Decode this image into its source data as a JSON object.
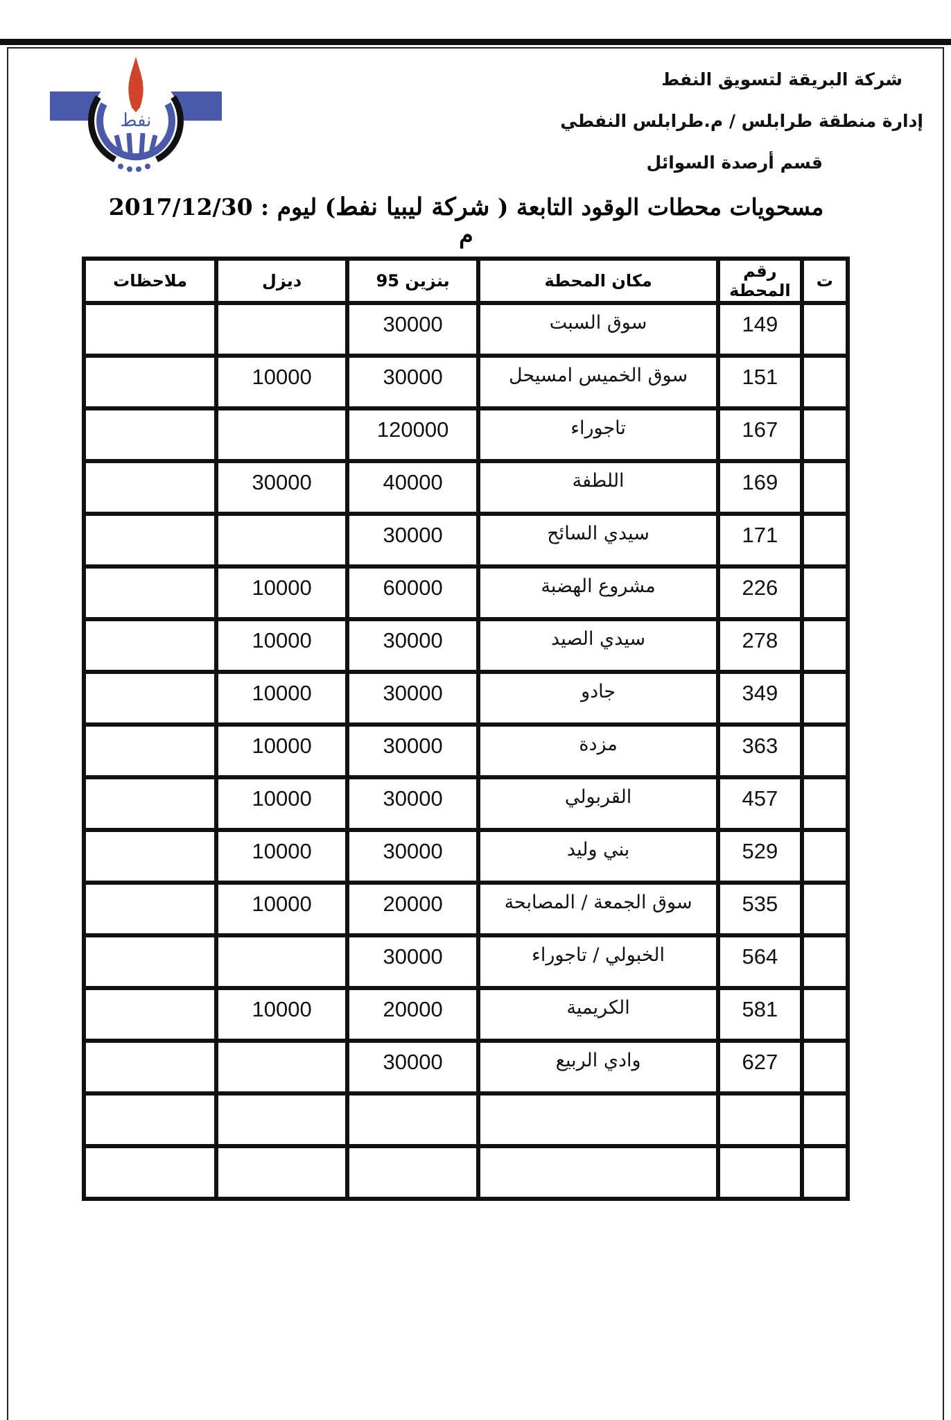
{
  "header": {
    "company": "شركة البريقة لتسويق النفط",
    "region": "إدارة منطقة طرابلس / م.طرابلس النفطي",
    "department": "قسم أرصدة السوائل",
    "logo_text": "نفط"
  },
  "title": {
    "prefix": "مسحويات محطات الوقود التابعة (",
    "company": "شركة ليبيا نفط",
    "suffix": ") ليوم : 2017/12/30 م"
  },
  "table": {
    "headers": [
      "ت",
      "رقم المحطة",
      "مكان المحطة",
      "بنزين 95",
      "ديزل",
      "ملاحظات"
    ],
    "rows": [
      {
        "n": "",
        "station": "149",
        "place": "سوق السبت",
        "petrol": "30000",
        "diesel": "",
        "notes": ""
      },
      {
        "n": "",
        "station": "151",
        "place": "سوق الخميس امسيحل",
        "petrol": "30000",
        "diesel": "10000",
        "notes": ""
      },
      {
        "n": "",
        "station": "167",
        "place": "تاجوراء",
        "petrol": "120000",
        "diesel": "",
        "notes": ""
      },
      {
        "n": "",
        "station": "169",
        "place": "اللطفة",
        "petrol": "40000",
        "diesel": "30000",
        "notes": ""
      },
      {
        "n": "",
        "station": "171",
        "place": "سيدي السائح",
        "petrol": "30000",
        "diesel": "",
        "notes": ""
      },
      {
        "n": "",
        "station": "226",
        "place": "مشروع الهضبة",
        "petrol": "60000",
        "diesel": "10000",
        "notes": ""
      },
      {
        "n": "",
        "station": "278",
        "place": "سيدي الصيد",
        "petrol": "30000",
        "diesel": "10000",
        "notes": ""
      },
      {
        "n": "",
        "station": "349",
        "place": "جادو",
        "petrol": "30000",
        "diesel": "10000",
        "notes": ""
      },
      {
        "n": "",
        "station": "363",
        "place": "مزدة",
        "petrol": "30000",
        "diesel": "10000",
        "notes": ""
      },
      {
        "n": "",
        "station": "457",
        "place": "القربولي",
        "petrol": "30000",
        "diesel": "10000",
        "notes": ""
      },
      {
        "n": "",
        "station": "529",
        "place": "بني وليد",
        "petrol": "30000",
        "diesel": "10000",
        "notes": ""
      },
      {
        "n": "",
        "station": "535",
        "place": "سوق الجمعة / المصابحة",
        "petrol": "20000",
        "diesel": "10000",
        "notes": ""
      },
      {
        "n": "",
        "station": "564",
        "place": "الخبولي / تاجوراء",
        "petrol": "30000",
        "diesel": "",
        "notes": ""
      },
      {
        "n": "",
        "station": "581",
        "place": "الكريمية",
        "petrol": "20000",
        "diesel": "10000",
        "notes": ""
      },
      {
        "n": "",
        "station": "627",
        "place": "وادي الربيع",
        "petrol": "30000",
        "diesel": "",
        "notes": ""
      },
      {
        "n": "",
        "station": "",
        "place": "",
        "petrol": "",
        "diesel": "",
        "notes": ""
      },
      {
        "n": "",
        "station": "",
        "place": "",
        "petrol": "",
        "diesel": "",
        "notes": ""
      }
    ]
  },
  "colors": {
    "logo_blue": "#4a5aa8",
    "logo_flame": "#d2442a",
    "logo_ring": "#111111"
  }
}
